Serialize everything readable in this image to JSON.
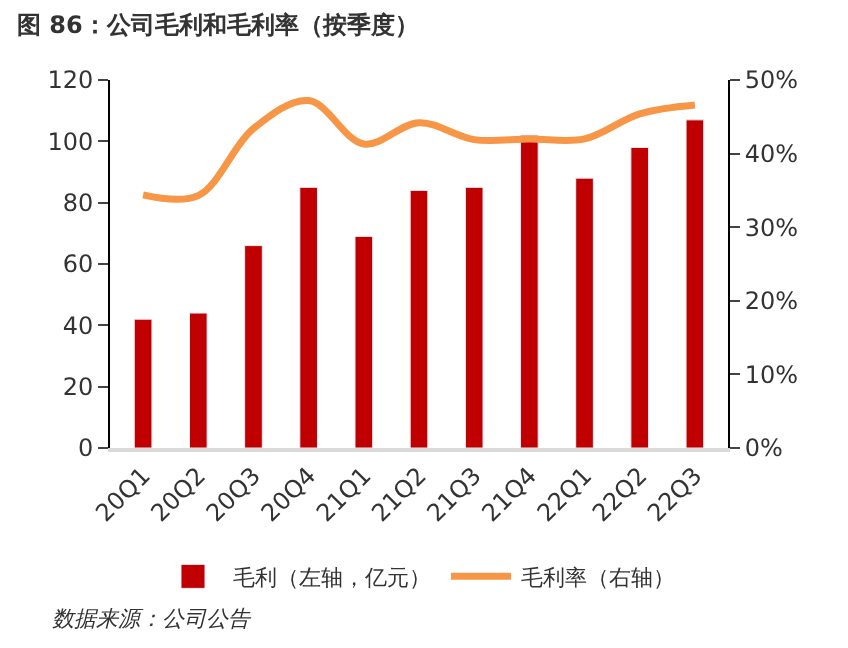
{
  "chart_data": {
    "type": "bar",
    "title": "图 86：公司毛利和毛利率（按季度）",
    "categories": [
      "20Q1",
      "20Q2",
      "20Q3",
      "20Q4",
      "21Q1",
      "21Q2",
      "21Q3",
      "21Q4",
      "22Q1",
      "22Q2",
      "22Q3"
    ],
    "series": [
      {
        "name": "毛利（左轴，亿元）",
        "color": "#c00000",
        "values": [
          42,
          44,
          66,
          85,
          69,
          84,
          85,
          102,
          88,
          98,
          107
        ]
      },
      {
        "name": "毛利率（右轴）",
        "type": "line",
        "axis": "y2",
        "color": "#f79646",
        "values": [
          34.4,
          34.3,
          43.4,
          47.2,
          41.3,
          44.2,
          41.9,
          42,
          42,
          45.4,
          46.6
        ]
      }
    ],
    "ylim": [
      0,
      120
    ],
    "yticks": [
      0,
      20,
      40,
      60,
      80,
      100,
      120
    ],
    "y2lim": [
      0,
      50
    ],
    "y2ticks": [
      {
        "value": 0,
        "label": "0%"
      },
      {
        "value": 10,
        "label": "10%"
      },
      {
        "value": 20,
        "label": "20%"
      },
      {
        "value": 30,
        "label": "30%"
      },
      {
        "value": 40,
        "label": "40%"
      },
      {
        "value": 50,
        "label": "50%"
      }
    ],
    "legend": "bottom",
    "annotations": [
      "数据来源：公司公告"
    ]
  }
}
